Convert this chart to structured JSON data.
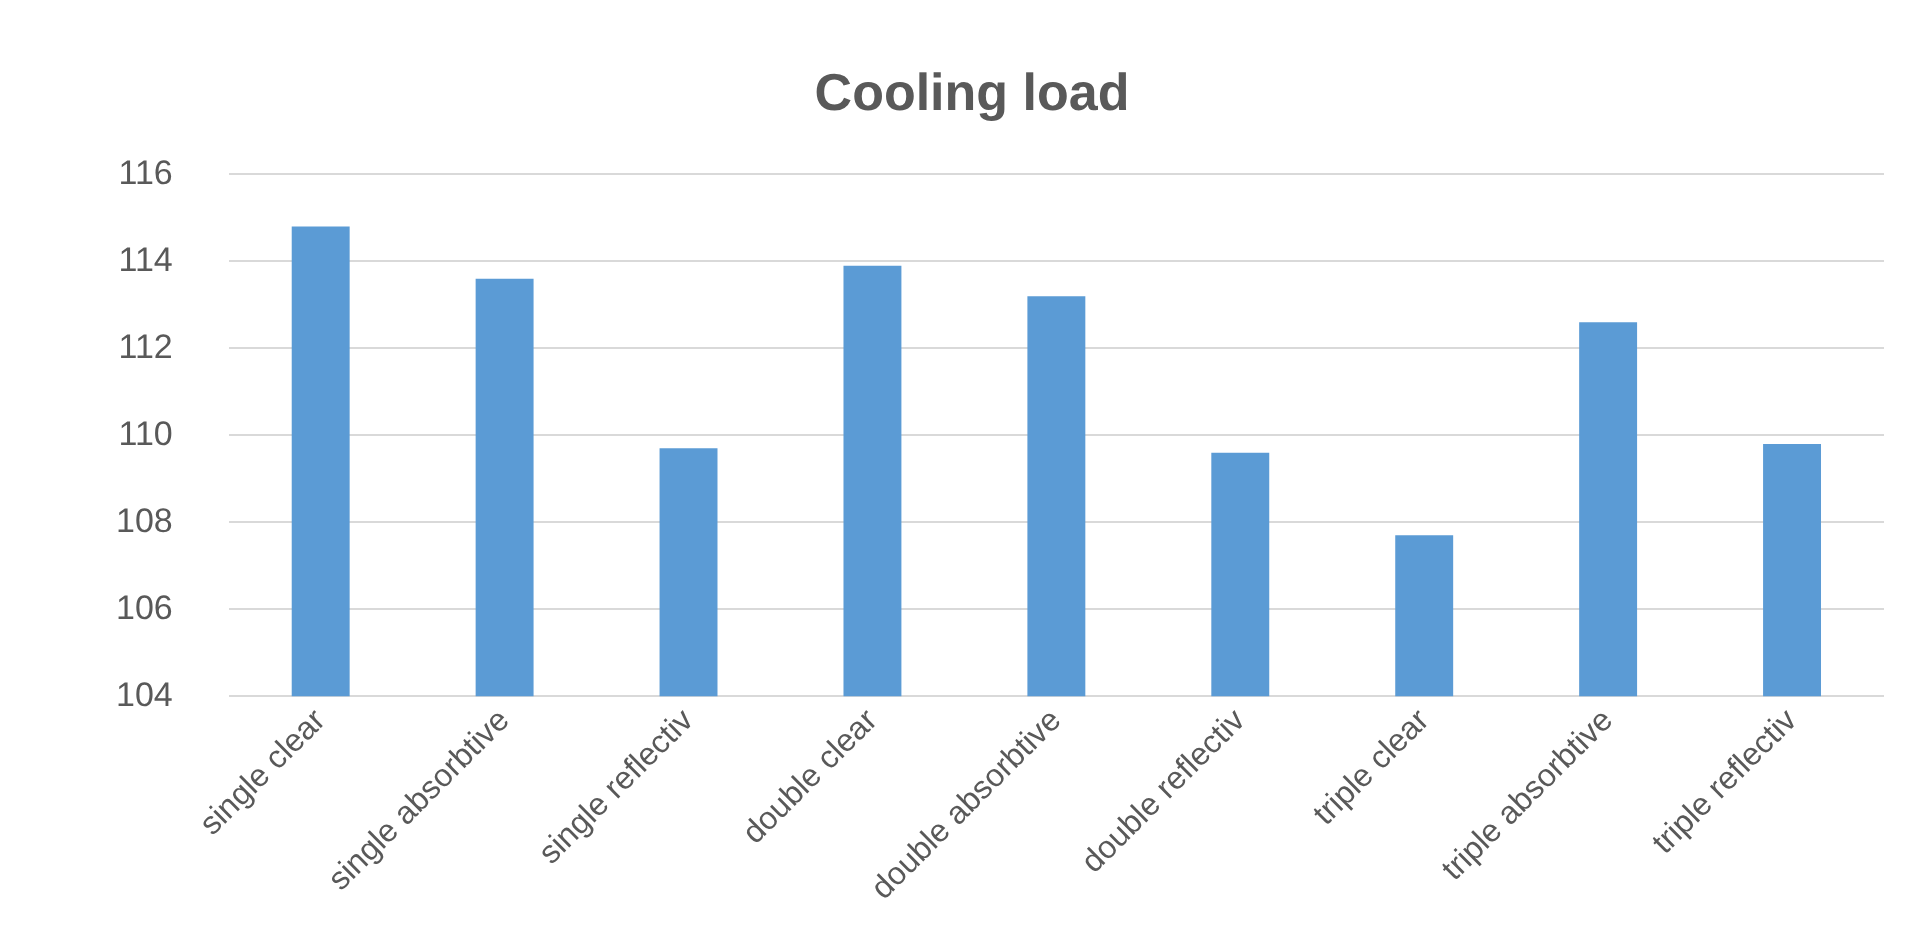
{
  "chart_data": {
    "type": "bar",
    "title": "Cooling load",
    "categories": [
      "single clear",
      "single absorbtive",
      "single reflectiv",
      "double clear",
      "double absorbtive",
      "double reflectiv",
      "triple clear",
      "triple absorbtive",
      "triple reflectiv"
    ],
    "values": [
      114.8,
      113.6,
      109.7,
      113.9,
      113.2,
      109.6,
      107.7,
      112.6,
      109.8
    ],
    "color": "#5b9bd5",
    "ylim": [
      104,
      116
    ],
    "yticks": [
      104,
      106,
      108,
      110,
      112,
      114,
      116
    ],
    "grid": "y"
  }
}
